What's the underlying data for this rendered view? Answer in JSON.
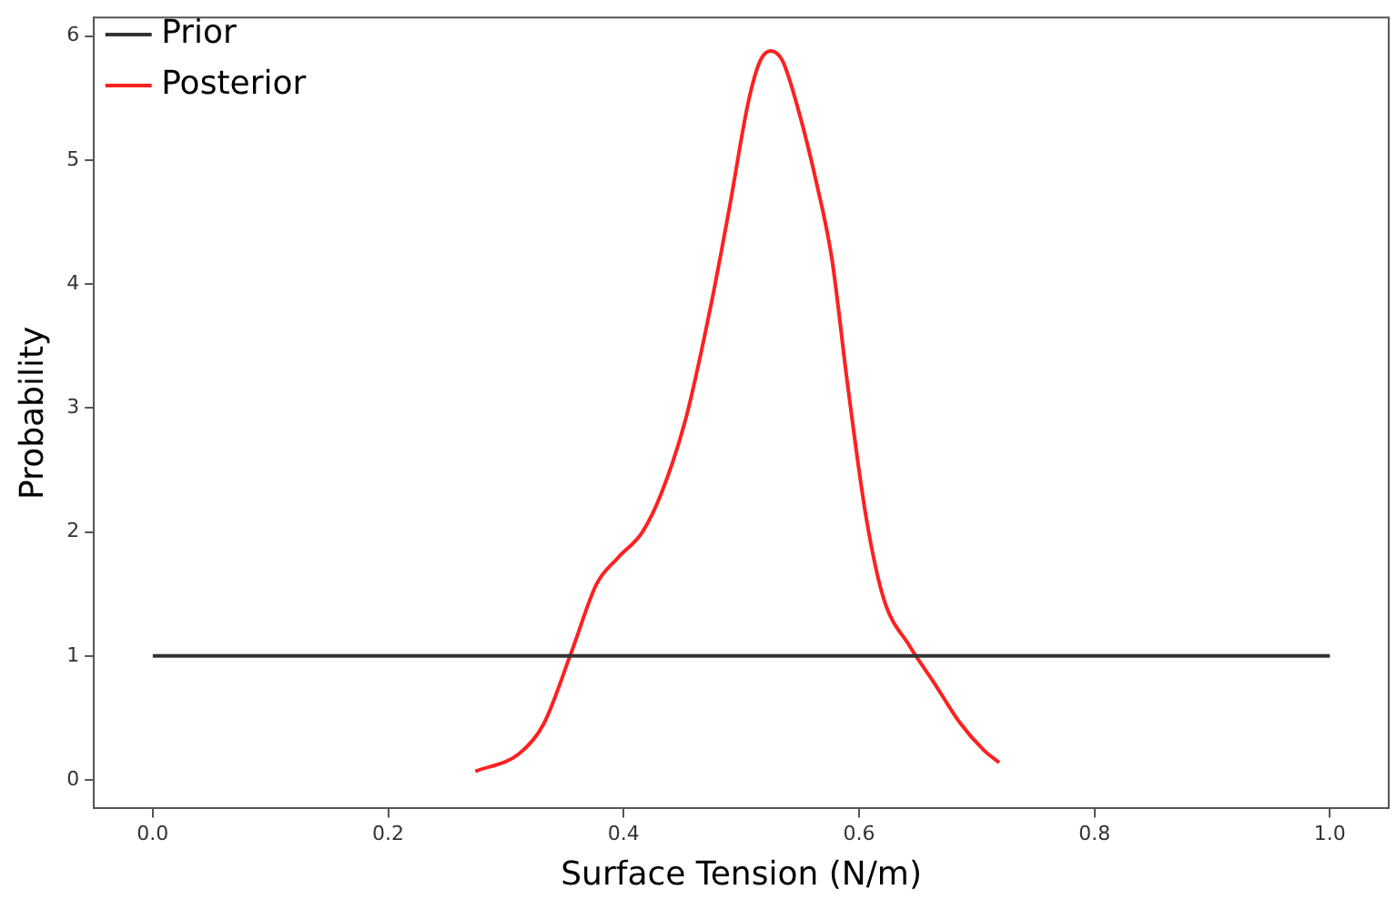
{
  "chart_data": {
    "type": "line",
    "xlabel": "Surface Tension (N/m)",
    "ylabel": "Probability",
    "xlim": [
      -0.05,
      1.05
    ],
    "ylim": [
      -0.23,
      6.15
    ],
    "xticks": [
      {
        "value": 0,
        "label": "0.0"
      },
      {
        "value": 0.2,
        "label": "0.2"
      },
      {
        "value": 0.4,
        "label": "0.4"
      },
      {
        "value": 0.6,
        "label": "0.6"
      },
      {
        "value": 0.8,
        "label": "0.8"
      },
      {
        "value": 1,
        "label": "1.0"
      }
    ],
    "yticks": [
      0,
      1,
      2,
      3,
      4,
      5,
      6
    ],
    "grid": false,
    "legend": "top left",
    "series": [
      {
        "name": "Prior",
        "color": "#333333",
        "type": "line",
        "x": [
          0,
          1
        ],
        "values": [
          1,
          1
        ]
      },
      {
        "name": "Posterior",
        "color": "#ff2020",
        "type": "line",
        "x": [
          0.274,
          0.311,
          0.332,
          0.356,
          0.377,
          0.395,
          0.416,
          0.432,
          0.453,
          0.474,
          0.49,
          0.506,
          0.516,
          0.525,
          0.535,
          0.548,
          0.564,
          0.577,
          0.59,
          0.606,
          0.621,
          0.643,
          0.664,
          0.685,
          0.706,
          0.719
        ],
        "values": [
          0.07,
          0.21,
          0.45,
          1.04,
          1.58,
          1.79,
          2.0,
          2.31,
          2.92,
          3.82,
          4.62,
          5.47,
          5.8,
          5.88,
          5.8,
          5.42,
          4.81,
          4.2,
          3.21,
          2.12,
          1.46,
          1.08,
          0.78,
          0.47,
          0.24,
          0.14
        ]
      }
    ]
  }
}
